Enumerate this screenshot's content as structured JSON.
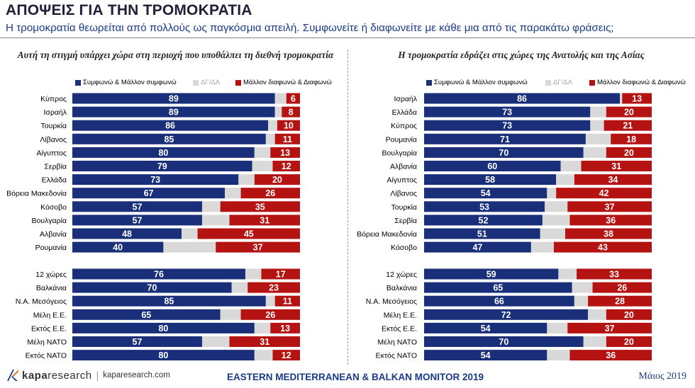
{
  "header": {
    "title": "ΑΠΟΨΕΙΣ ΓΙΑ ΤΗΝ ΤΡΟΜΟΚΡΑΤΙΑ",
    "subtitle": "Η τρομοκρατία θεωρείται από πολλούς ως παγκόσμια απειλή. Συμφωνείτε ή διαφωνείτε με κάθε μια από τις παρακάτω φράσεις;"
  },
  "legend": {
    "agree": "Συμφωνώ & Μάλλον συμφωνώ",
    "na": "ΔΓ/ΔΑ",
    "disagree": "Μάλλον διαφωνώ & Διαφωνώ"
  },
  "colors": {
    "agree": "#1a2f7a",
    "na": "#d9d9d9",
    "disagree": "#b51212"
  },
  "footer": {
    "logo_main": "kapa",
    "logo_rest": "research",
    "url": "kaparesearch.com",
    "center": "EASTERN MEDITERRANEAN & BALKAN MONITOR 2019",
    "date": "Μάιος 2019"
  },
  "chart_data": [
    {
      "type": "bar",
      "orientation": "horizontal",
      "stacked": true,
      "title": "Αυτή τη στιγμή υπάρχει χώρα στη περιοχή που υποθάλπει τη διεθνή τρομοκρατία",
      "categories": [
        "Κύπρος",
        "Ισραήλ",
        "Τουρκία",
        "Λίβανος",
        "Αίγυπτος",
        "Σερβία",
        "Ελλάδα",
        "Βόρεια Μακεδονία",
        "Κόσοβο",
        "Βουλγαρία",
        "Αλβανία",
        "Ρουμανία",
        "12 χώρες",
        "Βαλκάνια",
        "Ν.Α. Μεσόγειος",
        "Μέλη Ε.Ε.",
        "Εκτός Ε.Ε.",
        "Μέλη ΝΑΤΟ",
        "Εκτός ΝΑΤΟ"
      ],
      "series": [
        {
          "name": "Συμφωνώ & Μάλλον συμφωνώ",
          "values": [
            89,
            89,
            86,
            85,
            80,
            79,
            73,
            67,
            57,
            57,
            48,
            40,
            76,
            70,
            85,
            65,
            80,
            57,
            80
          ]
        },
        {
          "name": "ΔΓ/ΔΑ",
          "values": [
            5,
            3,
            4,
            4,
            7,
            9,
            7,
            7,
            8,
            12,
            7,
            23,
            7,
            7,
            4,
            9,
            7,
            12,
            8
          ]
        },
        {
          "name": "Μάλλον διαφωνώ & Διαφωνώ",
          "values": [
            6,
            8,
            10,
            11,
            13,
            12,
            20,
            26,
            35,
            31,
            45,
            37,
            17,
            23,
            11,
            26,
            13,
            31,
            12
          ]
        }
      ],
      "xlim": [
        0,
        100
      ],
      "legend_position": "top"
    },
    {
      "type": "bar",
      "orientation": "horizontal",
      "stacked": true,
      "title": "Η τρομοκρατία εδράζει στις χώρες της Ανατολής και της Ασίας",
      "categories": [
        "Ισραήλ",
        "Ελλάδα",
        "Κύπρος",
        "Ρουμανία",
        "Βουλγαρία",
        "Αλβανία",
        "Αίγυπτος",
        "Λίβανος",
        "Τουρκία",
        "Σερβία",
        "Βόρεια Μακεδονία",
        "Κόσοβο",
        "12 χώρες",
        "Βαλκάνια",
        "Ν.Α. Μεσόγειος",
        "Μέλη Ε.Ε.",
        "Εκτός Ε.Ε.",
        "Μέλη ΝΑΤΟ",
        "Εκτός ΝΑΤΟ"
      ],
      "series": [
        {
          "name": "Συμφωνώ & Μάλλον συμφωνώ",
          "values": [
            86,
            73,
            73,
            71,
            70,
            60,
            58,
            54,
            53,
            52,
            51,
            47,
            59,
            65,
            66,
            72,
            54,
            70,
            54
          ]
        },
        {
          "name": "ΔΓ/ΔΑ",
          "values": [
            1,
            7,
            6,
            11,
            10,
            9,
            8,
            4,
            10,
            12,
            11,
            10,
            8,
            9,
            6,
            8,
            9,
            10,
            10
          ]
        },
        {
          "name": "Μάλλον διαφωνώ & Διαφωνώ",
          "values": [
            13,
            20,
            21,
            18,
            20,
            31,
            34,
            42,
            37,
            36,
            38,
            43,
            33,
            26,
            28,
            20,
            37,
            20,
            36
          ]
        }
      ],
      "xlim": [
        0,
        100
      ],
      "legend_position": "top"
    }
  ]
}
